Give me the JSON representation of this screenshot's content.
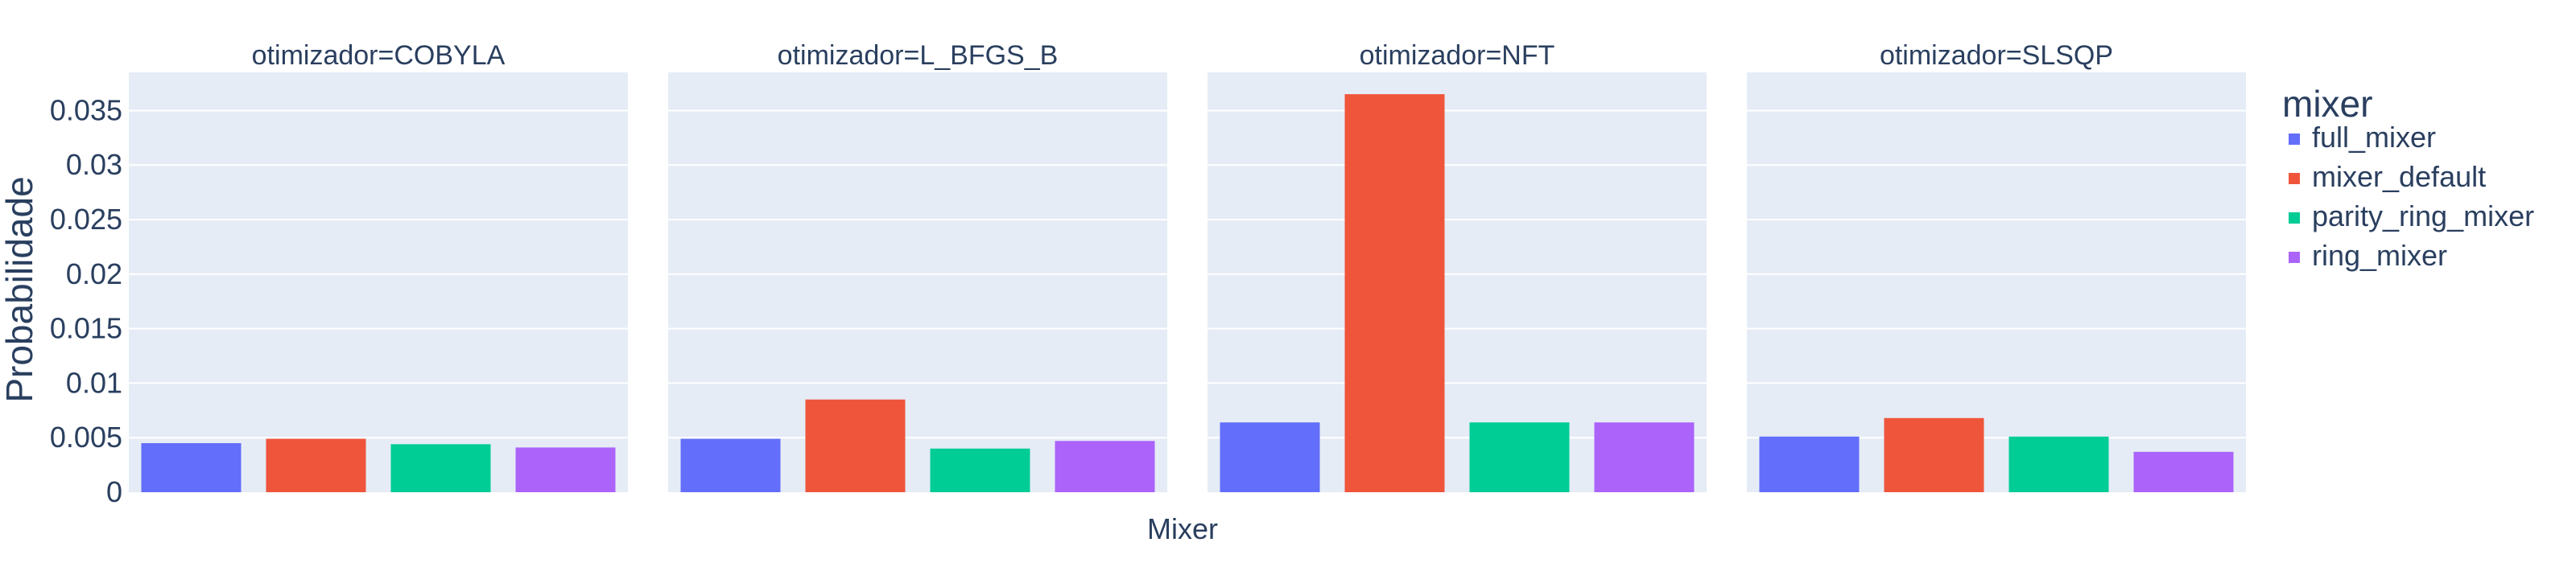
{
  "chart_data": {
    "type": "bar",
    "facet_variable": "otimizador",
    "facets": [
      {
        "title": "otimizador=COBYLA",
        "values": [
          0.0045,
          0.0049,
          0.0044,
          0.0041
        ]
      },
      {
        "title": "otimizador=L_BFGS_B",
        "values": [
          0.0049,
          0.0085,
          0.004,
          0.0047
        ]
      },
      {
        "title": "otimizador=NFT",
        "values": [
          0.0064,
          0.0365,
          0.0064,
          0.0064
        ]
      },
      {
        "title": "otimizador=SLSQP",
        "values": [
          0.0051,
          0.0068,
          0.0051,
          0.0037
        ]
      }
    ],
    "categories": [
      "full_mixer",
      "mixer_default",
      "parity_ring_mixer",
      "ring_mixer"
    ],
    "colors": [
      "#636EFA",
      "#EF553B",
      "#00CC96",
      "#AB63FA"
    ],
    "xlabel": "Mixer",
    "ylabel": "Probabilidade",
    "ylim": [
      0,
      0.0385
    ],
    "yticks": [
      0,
      0.005,
      0.01,
      0.015,
      0.02,
      0.025,
      0.03,
      0.035
    ],
    "ytick_labels": [
      "0",
      "0.005",
      "0.01",
      "0.015",
      "0.02",
      "0.025",
      "0.03",
      "0.035"
    ],
    "grid": true,
    "legend": {
      "title": "mixer",
      "placement": "right",
      "entries": [
        "full_mixer",
        "mixer_default",
        "parity_ring_mixer",
        "ring_mixer"
      ]
    }
  }
}
